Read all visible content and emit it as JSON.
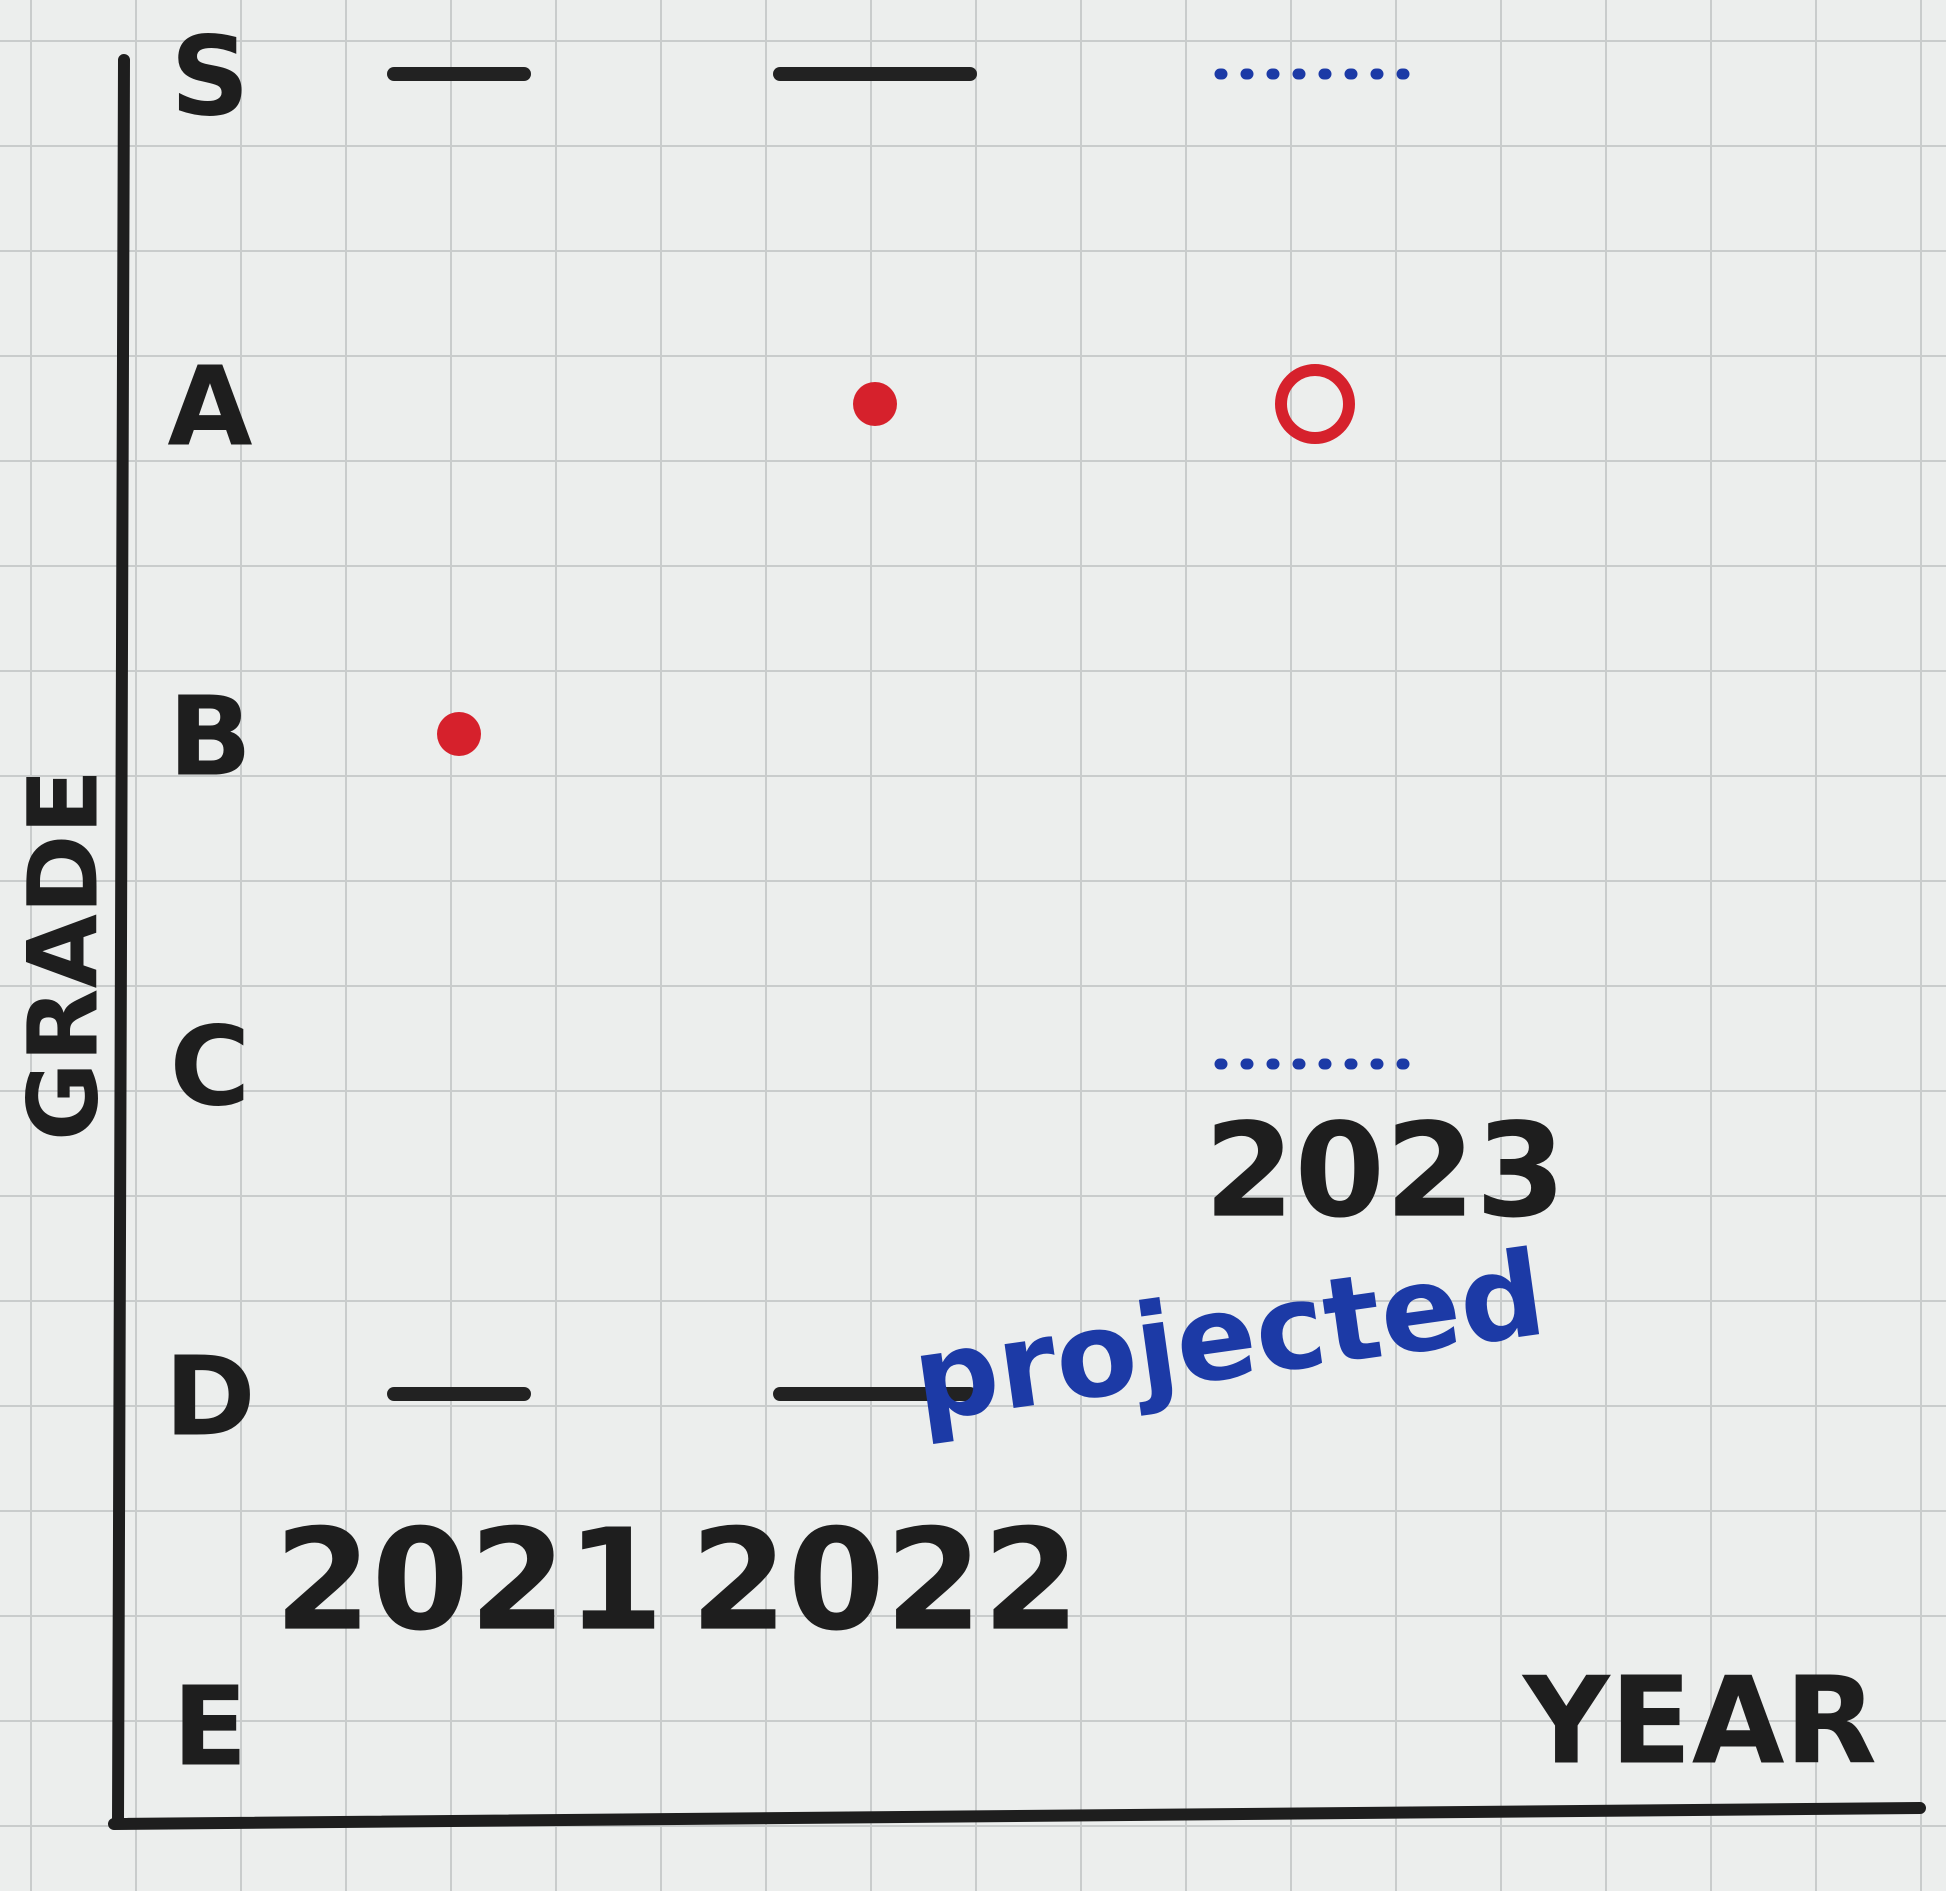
{
  "chart_data": {
    "type": "grade-range",
    "y_label": "GRADE",
    "x_label": "YEAR",
    "ycategories": [
      "S",
      "A",
      "B",
      "C",
      "D",
      "E"
    ],
    "categories": [
      "2021",
      "2022",
      "2023"
    ],
    "annotation": "projected",
    "grade": [
      "B",
      "A",
      "A"
    ],
    "range_high": [
      "S",
      "S",
      "S"
    ],
    "range_low": [
      "D",
      "D",
      "C"
    ],
    "projected": [
      false,
      false,
      true
    ],
    "point_color": "#d6212c",
    "range_color": "#222222",
    "projected_color": "#1c3aa6"
  }
}
